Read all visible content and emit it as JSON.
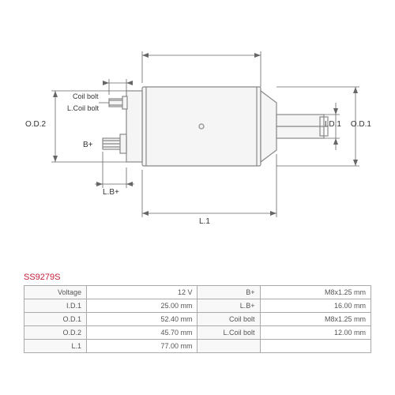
{
  "part_number": "SS9279S",
  "diagram": {
    "type": "engineering-drawing",
    "labels": {
      "coil_bolt": "Coil bolt",
      "l_coil_bolt": "L.Coil bolt",
      "b_plus": "B+",
      "l_b_plus": "L.B+",
      "od2": "O.D.2",
      "od1": "O.D.1",
      "id1": "I.D.1",
      "l1": "L.1"
    },
    "colors": {
      "line": "#888888",
      "dim": "#666666",
      "text": "#333333",
      "bg": "#ffffff"
    }
  },
  "specs": [
    {
      "label": "Voltage",
      "value": "12 V",
      "label2": "B+",
      "value2": "M8x1.25 mm"
    },
    {
      "label": "I.D.1",
      "value": "25.00 mm",
      "label2": "L.B+",
      "value2": "16.00 mm"
    },
    {
      "label": "O.D.1",
      "value": "52.40 mm",
      "label2": "Coil bolt",
      "value2": "M8x1.25 mm"
    },
    {
      "label": "O.D.2",
      "value": "45.70 mm",
      "label2": "L.Coil bolt",
      "value2": "12.00 mm"
    },
    {
      "label": "L.1",
      "value": "77.00 mm",
      "label2": "",
      "value2": ""
    }
  ]
}
